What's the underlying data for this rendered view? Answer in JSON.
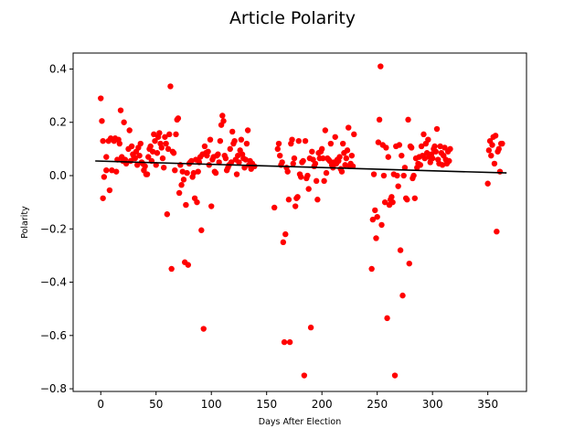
{
  "chart_data": {
    "type": "scatter",
    "title": "Article Polarity",
    "xlabel": "Days After Election",
    "ylabel": "Polarity",
    "xlim": [
      -25,
      385
    ],
    "ylim": [
      -0.81,
      0.46
    ],
    "xticks": [
      0,
      50,
      100,
      150,
      200,
      250,
      300,
      350
    ],
    "xtick_labels": [
      "0",
      "50",
      "100",
      "150",
      "200",
      "250",
      "300",
      "350"
    ],
    "yticks": [
      -0.8,
      -0.6,
      -0.4,
      -0.2,
      0.0,
      0.2,
      0.4
    ],
    "ytick_labels": [
      "−0.8",
      "−0.6",
      "−0.4",
      "−0.2",
      "0.0",
      "0.2",
      "0.4"
    ],
    "grid": false,
    "legend": "none",
    "point_color": "#ff0000",
    "trend_color": "#000000",
    "trend_line": {
      "x": [
        -5,
        367
      ],
      "y": [
        0.055,
        0.01
      ]
    },
    "points": [
      [
        0,
        0.29
      ],
      [
        1,
        0.205
      ],
      [
        2,
        0.13
      ],
      [
        2,
        -0.085
      ],
      [
        3,
        -0.005
      ],
      [
        5,
        0.07
      ],
      [
        5,
        0.02
      ],
      [
        7,
        0.13
      ],
      [
        8,
        -0.055
      ],
      [
        9,
        0.14
      ],
      [
        10,
        0.02
      ],
      [
        12,
        0.13
      ],
      [
        13,
        0.14
      ],
      [
        14,
        0.015
      ],
      [
        15,
        0.06
      ],
      [
        16,
        0.135
      ],
      [
        17,
        0.12
      ],
      [
        18,
        0.245
      ],
      [
        19,
        0.07
      ],
      [
        20,
        0.055
      ],
      [
        21,
        0.2
      ],
      [
        22,
        0.06
      ],
      [
        23,
        0.045
      ],
      [
        25,
        0.1
      ],
      [
        26,
        0.17
      ],
      [
        27,
        0.055
      ],
      [
        28,
        0.11
      ],
      [
        29,
        0.08
      ],
      [
        30,
        0.07
      ],
      [
        31,
        0.065
      ],
      [
        32,
        0.09
      ],
      [
        33,
        0.04
      ],
      [
        34,
        0.105
      ],
      [
        35,
        0.075
      ],
      [
        36,
        0.12
      ],
      [
        37,
        0.05
      ],
      [
        38,
        0.045
      ],
      [
        39,
        0.02
      ],
      [
        40,
        0.035
      ],
      [
        41,
        0.005
      ],
      [
        42,
        0.005
      ],
      [
        43,
        0.07
      ],
      [
        44,
        0.1
      ],
      [
        45,
        0.11
      ],
      [
        46,
        0.055
      ],
      [
        47,
        0.09
      ],
      [
        48,
        0.155
      ],
      [
        49,
        0.13
      ],
      [
        50,
        0.04
      ],
      [
        51,
        0.085
      ],
      [
        52,
        0.145
      ],
      [
        53,
        0.16
      ],
      [
        54,
        0.12
      ],
      [
        55,
        0.105
      ],
      [
        56,
        0.065
      ],
      [
        57,
        0.03
      ],
      [
        58,
        0.145
      ],
      [
        59,
        0.12
      ],
      [
        60,
        -0.145
      ],
      [
        61,
        0.1
      ],
      [
        62,
        0.155
      ],
      [
        63,
        0.335
      ],
      [
        64,
        -0.35
      ],
      [
        65,
        0.09
      ],
      [
        66,
        0.085
      ],
      [
        67,
        0.02
      ],
      [
        68,
        0.155
      ],
      [
        69,
        0.21
      ],
      [
        70,
        0.215
      ],
      [
        71,
        -0.065
      ],
      [
        72,
        0.04
      ],
      [
        73,
        -0.035
      ],
      [
        74,
        0.015
      ],
      [
        75,
        -0.015
      ],
      [
        76,
        -0.325
      ],
      [
        77,
        -0.11
      ],
      [
        78,
        0.01
      ],
      [
        79,
        -0.335
      ],
      [
        80,
        0.045
      ],
      [
        81,
        0.05
      ],
      [
        82,
        0.055
      ],
      [
        83,
        -0.005
      ],
      [
        84,
        0.01
      ],
      [
        85,
        -0.085
      ],
      [
        86,
        0.06
      ],
      [
        87,
        -0.1
      ],
      [
        88,
        0.015
      ],
      [
        89,
        0.05
      ],
      [
        90,
        0.07
      ],
      [
        91,
        -0.205
      ],
      [
        92,
        0.08
      ],
      [
        93,
        -0.575
      ],
      [
        94,
        0.11
      ],
      [
        95,
        0.085
      ],
      [
        96,
        0.075
      ],
      [
        97,
        0.09
      ],
      [
        98,
        0.04
      ],
      [
        99,
        0.135
      ],
      [
        100,
        -0.115
      ],
      [
        101,
        0.06
      ],
      [
        102,
        0.07
      ],
      [
        103,
        0.015
      ],
      [
        104,
        0.01
      ],
      [
        105,
        0.075
      ],
      [
        106,
        0.08
      ],
      [
        107,
        0.05
      ],
      [
        108,
        0.13
      ],
      [
        109,
        0.19
      ],
      [
        110,
        0.225
      ],
      [
        111,
        0.205
      ],
      [
        112,
        0.075
      ],
      [
        113,
        0.065
      ],
      [
        114,
        0.02
      ],
      [
        115,
        0.03
      ],
      [
        116,
        0.04
      ],
      [
        117,
        0.1
      ],
      [
        118,
        0.05
      ],
      [
        119,
        0.165
      ],
      [
        120,
        0.12
      ],
      [
        121,
        0.13
      ],
      [
        122,
        0.06
      ],
      [
        123,
        0.005
      ],
      [
        124,
        0.075
      ],
      [
        125,
        0.05
      ],
      [
        126,
        0.095
      ],
      [
        127,
        0.135
      ],
      [
        128,
        0.08
      ],
      [
        129,
        0.065
      ],
      [
        130,
        0.03
      ],
      [
        131,
        0.06
      ],
      [
        132,
        0.12
      ],
      [
        133,
        0.17
      ],
      [
        134,
        0.04
      ],
      [
        135,
        0.055
      ],
      [
        136,
        0.025
      ],
      [
        137,
        0.045
      ],
      [
        138,
        0.035
      ],
      [
        139,
        0.035
      ],
      [
        157,
        -0.12
      ],
      [
        160,
        0.1
      ],
      [
        161,
        0.12
      ],
      [
        162,
        0.075
      ],
      [
        163,
        0.04
      ],
      [
        164,
        0.05
      ],
      [
        165,
        -0.25
      ],
      [
        166,
        -0.625
      ],
      [
        167,
        -0.22
      ],
      [
        168,
        0.03
      ],
      [
        169,
        0.015
      ],
      [
        170,
        -0.09
      ],
      [
        171,
        -0.625
      ],
      [
        172,
        0.12
      ],
      [
        173,
        0.135
      ],
      [
        174,
        0.045
      ],
      [
        175,
        0.065
      ],
      [
        176,
        -0.115
      ],
      [
        177,
        -0.085
      ],
      [
        178,
        -0.08
      ],
      [
        179,
        0.13
      ],
      [
        180,
        0.005
      ],
      [
        181,
        -0.005
      ],
      [
        182,
        0.05
      ],
      [
        183,
        0.055
      ],
      [
        184,
        -0.75
      ],
      [
        185,
        0.13
      ],
      [
        186,
        -0.01
      ],
      [
        187,
        0.0
      ],
      [
        188,
        -0.05
      ],
      [
        189,
        0.065
      ],
      [
        190,
        -0.57
      ],
      [
        191,
        0.09
      ],
      [
        192,
        0.06
      ],
      [
        193,
        0.035
      ],
      [
        194,
        0.045
      ],
      [
        195,
        -0.02
      ],
      [
        196,
        -0.09
      ],
      [
        197,
        0.085
      ],
      [
        198,
        0.065
      ],
      [
        199,
        0.09
      ],
      [
        200,
        0.1
      ],
      [
        201,
        0.065
      ],
      [
        202,
        -0.02
      ],
      [
        203,
        0.17
      ],
      [
        204,
        0.01
      ],
      [
        205,
        0.065
      ],
      [
        206,
        0.06
      ],
      [
        207,
        0.055
      ],
      [
        208,
        0.12
      ],
      [
        209,
        0.04
      ],
      [
        210,
        0.03
      ],
      [
        211,
        0.05
      ],
      [
        212,
        0.145
      ],
      [
        213,
        0.045
      ],
      [
        214,
        0.06
      ],
      [
        215,
        0.055
      ],
      [
        216,
        0.07
      ],
      [
        217,
        0.025
      ],
      [
        218,
        0.015
      ],
      [
        219,
        0.12
      ],
      [
        220,
        0.085
      ],
      [
        221,
        0.04
      ],
      [
        222,
        0.065
      ],
      [
        223,
        0.095
      ],
      [
        224,
        0.18
      ],
      [
        225,
        0.035
      ],
      [
        226,
        0.045
      ],
      [
        227,
        0.075
      ],
      [
        228,
        0.035
      ],
      [
        229,
        0.155
      ],
      [
        245,
        -0.35
      ],
      [
        246,
        -0.165
      ],
      [
        247,
        0.005
      ],
      [
        248,
        -0.13
      ],
      [
        249,
        -0.235
      ],
      [
        250,
        -0.155
      ],
      [
        251,
        0.125
      ],
      [
        252,
        0.21
      ],
      [
        253,
        0.41
      ],
      [
        254,
        -0.185
      ],
      [
        255,
        0.115
      ],
      [
        256,
        0.0
      ],
      [
        257,
        -0.1
      ],
      [
        258,
        0.105
      ],
      [
        259,
        -0.535
      ],
      [
        260,
        0.07
      ],
      [
        261,
        -0.11
      ],
      [
        262,
        -0.09
      ],
      [
        263,
        -0.08
      ],
      [
        264,
        -0.1
      ],
      [
        265,
        0.005
      ],
      [
        266,
        -0.75
      ],
      [
        267,
        0.11
      ],
      [
        268,
        0.0
      ],
      [
        269,
        -0.04
      ],
      [
        270,
        0.115
      ],
      [
        271,
        -0.28
      ],
      [
        272,
        0.075
      ],
      [
        273,
        -0.45
      ],
      [
        274,
        0.0
      ],
      [
        275,
        0.03
      ],
      [
        276,
        -0.085
      ],
      [
        277,
        -0.09
      ],
      [
        278,
        0.21
      ],
      [
        279,
        -0.33
      ],
      [
        280,
        0.11
      ],
      [
        281,
        0.105
      ],
      [
        282,
        -0.01
      ],
      [
        283,
        0.0
      ],
      [
        284,
        -0.085
      ],
      [
        285,
        0.065
      ],
      [
        286,
        0.03
      ],
      [
        287,
        0.045
      ],
      [
        288,
        0.07
      ],
      [
        289,
        0.04
      ],
      [
        290,
        0.11
      ],
      [
        291,
        0.075
      ],
      [
        292,
        0.155
      ],
      [
        293,
        0.065
      ],
      [
        294,
        0.12
      ],
      [
        295,
        0.085
      ],
      [
        296,
        0.135
      ],
      [
        297,
        0.07
      ],
      [
        298,
        0.05
      ],
      [
        299,
        0.08
      ],
      [
        300,
        0.065
      ],
      [
        301,
        0.1
      ],
      [
        302,
        0.11
      ],
      [
        303,
        0.09
      ],
      [
        304,
        0.175
      ],
      [
        305,
        0.06
      ],
      [
        306,
        0.045
      ],
      [
        307,
        0.11
      ],
      [
        308,
        0.085
      ],
      [
        309,
        0.04
      ],
      [
        310,
        0.075
      ],
      [
        311,
        0.105
      ],
      [
        312,
        0.06
      ],
      [
        313,
        0.045
      ],
      [
        314,
        0.09
      ],
      [
        315,
        0.055
      ],
      [
        316,
        0.1
      ],
      [
        350,
        -0.03
      ],
      [
        351,
        0.095
      ],
      [
        352,
        0.13
      ],
      [
        353,
        0.075
      ],
      [
        354,
        0.115
      ],
      [
        355,
        0.145
      ],
      [
        356,
        0.045
      ],
      [
        357,
        0.15
      ],
      [
        358,
        -0.21
      ],
      [
        359,
        0.09
      ],
      [
        360,
        0.1
      ],
      [
        361,
        0.015
      ],
      [
        362,
        0.12
      ],
      [
        363,
        0.12
      ]
    ]
  }
}
